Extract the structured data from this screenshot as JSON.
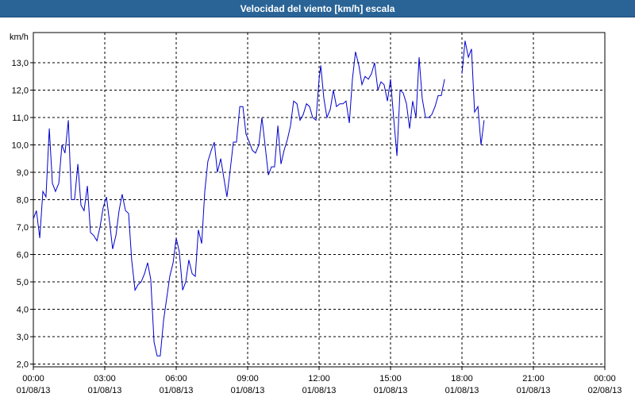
{
  "window": {
    "title": "Velocidad del viento [km/h] escala"
  },
  "chart_data": {
    "type": "line",
    "title": "Velocidad del viento [km/h] escala",
    "ylabel": "km/h",
    "xlabel": "",
    "ylim": [
      1.9,
      14.1
    ],
    "xlim_hours": [
      0,
      24
    ],
    "grid": true,
    "y_ticks": [
      "2,0",
      "3,0",
      "4,0",
      "5,0",
      "6,0",
      "7,0",
      "8,0",
      "9,0",
      "10,0",
      "11,0",
      "12,0",
      "13,0"
    ],
    "x_ticks": [
      {
        "time": "00:00",
        "date": "01/08/13"
      },
      {
        "time": "03:00",
        "date": "01/08/13"
      },
      {
        "time": "06:00",
        "date": "01/08/13"
      },
      {
        "time": "09:00",
        "date": "01/08/13"
      },
      {
        "time": "12:00",
        "date": "01/08/13"
      },
      {
        "time": "15:00",
        "date": "01/08/13"
      },
      {
        "time": "18:00",
        "date": "01/08/13"
      },
      {
        "time": "21:00",
        "date": "01/08/13"
      },
      {
        "time": "00:00",
        "date": "02/08/13"
      }
    ],
    "series": [
      {
        "color": "#0000cc",
        "segments": [
          [
            [
              0.0,
              7.3
            ],
            [
              0.13,
              7.6
            ],
            [
              0.27,
              6.6
            ],
            [
              0.4,
              8.3
            ],
            [
              0.53,
              8.1
            ],
            [
              0.67,
              10.6
            ],
            [
              0.8,
              8.6
            ],
            [
              0.93,
              8.3
            ],
            [
              1.07,
              8.6
            ],
            [
              1.2,
              10.0
            ],
            [
              1.33,
              9.7
            ],
            [
              1.47,
              10.9
            ],
            [
              1.6,
              8.0
            ],
            [
              1.73,
              8.0
            ],
            [
              1.87,
              9.3
            ],
            [
              2.0,
              7.8
            ],
            [
              2.13,
              7.6
            ],
            [
              2.27,
              8.5
            ],
            [
              2.4,
              6.8
            ],
            [
              2.53,
              6.7
            ],
            [
              2.67,
              6.5
            ],
            [
              2.8,
              7.0
            ],
            [
              2.93,
              7.7
            ],
            [
              3.07,
              8.1
            ],
            [
              3.2,
              7.2
            ],
            [
              3.33,
              6.2
            ],
            [
              3.47,
              6.7
            ],
            [
              3.6,
              7.6
            ],
            [
              3.73,
              8.2
            ],
            [
              3.87,
              7.6
            ],
            [
              4.0,
              7.5
            ],
            [
              4.13,
              5.8
            ],
            [
              4.27,
              4.7
            ],
            [
              4.4,
              4.9
            ],
            [
              4.53,
              5.0
            ],
            [
              4.67,
              5.3
            ],
            [
              4.8,
              5.7
            ],
            [
              4.93,
              5.1
            ],
            [
              5.07,
              2.8
            ],
            [
              5.2,
              2.3
            ],
            [
              5.33,
              2.3
            ],
            [
              5.47,
              3.6
            ],
            [
              5.6,
              4.4
            ],
            [
              5.73,
              5.2
            ],
            [
              5.87,
              5.7
            ],
            [
              6.0,
              6.6
            ],
            [
              6.13,
              6.1
            ],
            [
              6.27,
              4.7
            ],
            [
              6.4,
              5.0
            ],
            [
              6.53,
              5.8
            ],
            [
              6.67,
              5.3
            ],
            [
              6.8,
              5.2
            ],
            [
              6.93,
              6.9
            ],
            [
              7.07,
              6.4
            ],
            [
              7.2,
              8.3
            ],
            [
              7.33,
              9.4
            ],
            [
              7.47,
              9.8
            ],
            [
              7.6,
              10.1
            ],
            [
              7.73,
              9.0
            ],
            [
              7.87,
              9.5
            ],
            [
              8.0,
              8.8
            ],
            [
              8.13,
              8.1
            ],
            [
              8.27,
              9.1
            ],
            [
              8.4,
              10.1
            ],
            [
              8.53,
              10.1
            ],
            [
              8.67,
              11.4
            ],
            [
              8.8,
              11.4
            ],
            [
              8.93,
              10.4
            ],
            [
              9.07,
              10.1
            ],
            [
              9.2,
              9.8
            ],
            [
              9.33,
              9.7
            ],
            [
              9.47,
              10.0
            ],
            [
              9.6,
              11.0
            ],
            [
              9.73,
              10.0
            ],
            [
              9.87,
              8.9
            ],
            [
              10.0,
              9.2
            ],
            [
              10.13,
              9.2
            ],
            [
              10.27,
              10.7
            ],
            [
              10.4,
              9.3
            ],
            [
              10.53,
              9.8
            ],
            [
              10.67,
              10.2
            ],
            [
              10.8,
              10.7
            ],
            [
              10.93,
              11.6
            ],
            [
              11.07,
              11.5
            ],
            [
              11.2,
              10.9
            ],
            [
              11.33,
              11.1
            ],
            [
              11.47,
              11.5
            ],
            [
              11.6,
              11.4
            ],
            [
              11.73,
              11.0
            ],
            [
              11.87,
              10.9
            ],
            [
              12.0,
              12.4
            ],
            [
              12.07,
              12.9
            ],
            [
              12.2,
              11.7
            ],
            [
              12.33,
              11.0
            ],
            [
              12.47,
              11.3
            ],
            [
              12.6,
              12.0
            ],
            [
              12.73,
              11.4
            ],
            [
              12.87,
              11.5
            ],
            [
              13.0,
              11.5
            ],
            [
              13.13,
              11.6
            ],
            [
              13.27,
              10.8
            ],
            [
              13.4,
              12.4
            ],
            [
              13.53,
              13.4
            ],
            [
              13.67,
              12.9
            ],
            [
              13.8,
              12.2
            ],
            [
              13.93,
              12.5
            ],
            [
              14.07,
              12.4
            ],
            [
              14.2,
              12.6
            ],
            [
              14.33,
              13.0
            ],
            [
              14.47,
              12.0
            ],
            [
              14.6,
              12.3
            ],
            [
              14.73,
              12.2
            ],
            [
              14.87,
              11.6
            ],
            [
              15.0,
              12.4
            ],
            [
              15.13,
              11.0
            ],
            [
              15.27,
              9.6
            ],
            [
              15.4,
              12.0
            ],
            [
              15.53,
              11.9
            ],
            [
              15.67,
              11.5
            ],
            [
              15.8,
              10.6
            ],
            [
              15.93,
              11.6
            ],
            [
              16.07,
              11.0
            ],
            [
              16.2,
              13.2
            ],
            [
              16.33,
              11.7
            ],
            [
              16.47,
              11.0
            ],
            [
              16.6,
              11.0
            ],
            [
              16.73,
              11.1
            ],
            [
              16.87,
              11.4
            ],
            [
              17.0,
              11.8
            ],
            [
              17.13,
              11.8
            ],
            [
              17.27,
              12.4
            ]
          ],
          [
            [
              18.0,
              12.6
            ],
            [
              18.13,
              13.8
            ],
            [
              18.27,
              13.2
            ],
            [
              18.4,
              13.5
            ],
            [
              18.53,
              11.2
            ],
            [
              18.67,
              11.4
            ],
            [
              18.8,
              10.0
            ],
            [
              18.93,
              10.9
            ]
          ]
        ]
      }
    ]
  }
}
